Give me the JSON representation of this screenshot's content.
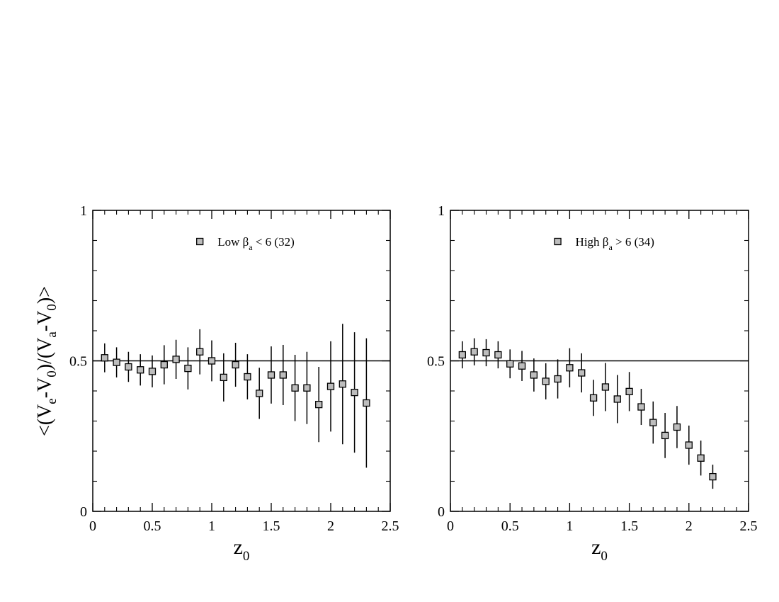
{
  "figure": {
    "ylabel": {
      "parts": [
        {
          "t": "<(V",
          "sub": false
        },
        {
          "t": "e",
          "sub": true
        },
        {
          "t": "-V",
          "sub": false
        },
        {
          "t": "0",
          "sub": true
        },
        {
          "t": ")/(V",
          "sub": false
        },
        {
          "t": "a",
          "sub": true
        },
        {
          "t": "-V",
          "sub": false
        },
        {
          "t": "0",
          "sub": true
        },
        {
          "t": ")>",
          "sub": false
        }
      ]
    }
  },
  "chart_data": [
    {
      "type": "scatter",
      "title": "",
      "xlabel": {
        "main": "z",
        "sub": "0"
      },
      "ylabel": "",
      "xlim": [
        0,
        2.5
      ],
      "ylim": [
        0,
        1
      ],
      "xticks": [
        {
          "v": 0,
          "label": "0"
        },
        {
          "v": 0.5,
          "label": "0.5"
        },
        {
          "v": 1,
          "label": "1"
        },
        {
          "v": 1.5,
          "label": "1.5"
        },
        {
          "v": 2,
          "label": "2"
        },
        {
          "v": 2.5,
          "label": "2.5"
        }
      ],
      "yticks": [
        {
          "v": 0,
          "label": "0"
        },
        {
          "v": 0.5,
          "label": "0.5"
        },
        {
          "v": 1,
          "label": "1"
        }
      ],
      "reference_line": 0.5,
      "legend_placement": "top-center",
      "marker_color": "#bdbdbd",
      "series": [
        {
          "legend": {
            "prefix": "Low β",
            "sub": "a",
            "suffix": " < 6 (32)"
          },
          "x": [
            0.1,
            0.2,
            0.3,
            0.4,
            0.5,
            0.6,
            0.7,
            0.8,
            0.9,
            1.0,
            1.1,
            1.2,
            1.3,
            1.4,
            1.5,
            1.6,
            1.7,
            1.8,
            1.9,
            2.0,
            2.1,
            2.2,
            2.3
          ],
          "y": [
            0.51,
            0.495,
            0.48,
            0.47,
            0.465,
            0.487,
            0.505,
            0.475,
            0.53,
            0.5,
            0.445,
            0.487,
            0.447,
            0.392,
            0.453,
            0.453,
            0.41,
            0.41,
            0.355,
            0.415,
            0.423,
            0.395,
            0.36
          ],
          "err": [
            0.048,
            0.05,
            0.05,
            0.052,
            0.053,
            0.065,
            0.065,
            0.07,
            0.075,
            0.068,
            0.08,
            0.073,
            0.075,
            0.085,
            0.095,
            0.1,
            0.11,
            0.12,
            0.125,
            0.15,
            0.2,
            0.2,
            0.215
          ]
        }
      ]
    },
    {
      "type": "scatter",
      "title": "",
      "xlabel": {
        "main": "z",
        "sub": "0"
      },
      "ylabel": "",
      "xlim": [
        0,
        2.5
      ],
      "ylim": [
        0,
        1
      ],
      "xticks": [
        {
          "v": 0,
          "label": "0"
        },
        {
          "v": 0.5,
          "label": "0.5"
        },
        {
          "v": 1,
          "label": "1"
        },
        {
          "v": 1.5,
          "label": "1.5"
        },
        {
          "v": 2,
          "label": "2"
        },
        {
          "v": 2.5,
          "label": "2.5"
        }
      ],
      "yticks": [
        {
          "v": 0,
          "label": "0"
        },
        {
          "v": 0.5,
          "label": "0.5"
        },
        {
          "v": 1,
          "label": "1"
        }
      ],
      "reference_line": 0.5,
      "legend_placement": "top-center",
      "marker_color": "#bdbdbd",
      "series": [
        {
          "legend": {
            "prefix": "High β",
            "sub": "a",
            "suffix": " > 6 (34)"
          },
          "x": [
            0.1,
            0.2,
            0.3,
            0.4,
            0.5,
            0.6,
            0.7,
            0.8,
            0.9,
            1.0,
            1.1,
            1.2,
            1.3,
            1.4,
            1.5,
            1.6,
            1.7,
            1.8,
            1.9,
            2.0,
            2.1,
            2.2
          ],
          "y": [
            0.52,
            0.53,
            0.527,
            0.52,
            0.49,
            0.483,
            0.453,
            0.432,
            0.44,
            0.477,
            0.46,
            0.377,
            0.413,
            0.373,
            0.398,
            0.347,
            0.295,
            0.252,
            0.28,
            0.22,
            0.177,
            0.115
          ],
          "err": [
            0.045,
            0.045,
            0.045,
            0.045,
            0.048,
            0.05,
            0.055,
            0.06,
            0.065,
            0.065,
            0.065,
            0.06,
            0.08,
            0.08,
            0.065,
            0.06,
            0.07,
            0.075,
            0.07,
            0.065,
            0.058,
            0.04
          ]
        }
      ]
    }
  ]
}
